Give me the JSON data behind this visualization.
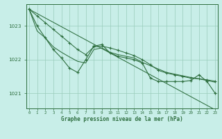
{
  "bg_color": "#c8eee8",
  "plot_bg_color": "#c8eee8",
  "grid_color": "#99ccbb",
  "line_color": "#2d6e3e",
  "title": "Graphe pression niveau de la mer (hPa)",
  "hours": [
    0,
    1,
    2,
    3,
    4,
    5,
    6,
    7,
    8,
    9,
    10,
    11,
    12,
    13,
    14,
    15,
    16,
    17,
    18,
    19,
    20,
    21,
    22,
    23
  ],
  "ylim": [
    1020.55,
    1023.65
  ],
  "yticks": [
    1021,
    1022,
    1023
  ],
  "series_main": [
    1023.5,
    1023.0,
    1022.65,
    1022.3,
    1022.05,
    1021.75,
    1021.62,
    1022.0,
    1022.4,
    1022.45,
    1022.2,
    1022.1,
    1022.05,
    1022.0,
    1021.9,
    1021.45,
    1021.35,
    1021.35,
    1021.35,
    1021.35,
    1021.38,
    1021.55,
    1021.35,
    1021.0
  ],
  "series_smooth": [
    1023.5,
    1022.85,
    1022.65,
    1022.38,
    1022.22,
    1022.08,
    1021.95,
    1021.9,
    1022.3,
    1022.35,
    1022.22,
    1022.15,
    1022.1,
    1022.05,
    1021.92,
    1021.82,
    1021.72,
    1021.62,
    1021.57,
    1021.52,
    1021.47,
    1021.43,
    1021.38,
    1021.33
  ],
  "series_linear1": [
    1023.5,
    1023.37,
    1023.24,
    1023.11,
    1022.98,
    1022.85,
    1022.72,
    1022.59,
    1022.46,
    1022.33,
    1022.2,
    1022.07,
    1021.94,
    1021.81,
    1021.68,
    1021.55,
    1021.42,
    1021.29,
    1021.16,
    1021.03,
    1020.9,
    1020.77,
    1020.64,
    1020.51
  ],
  "series_linear2": [
    1023.5,
    1023.3,
    1023.1,
    1022.9,
    1022.7,
    1022.5,
    1022.3,
    1022.15,
    1022.38,
    1022.4,
    1022.35,
    1022.28,
    1022.2,
    1022.12,
    1022.0,
    1021.85,
    1021.68,
    1021.6,
    1021.55,
    1021.5,
    1021.45,
    1021.43,
    1021.4,
    1021.36
  ]
}
